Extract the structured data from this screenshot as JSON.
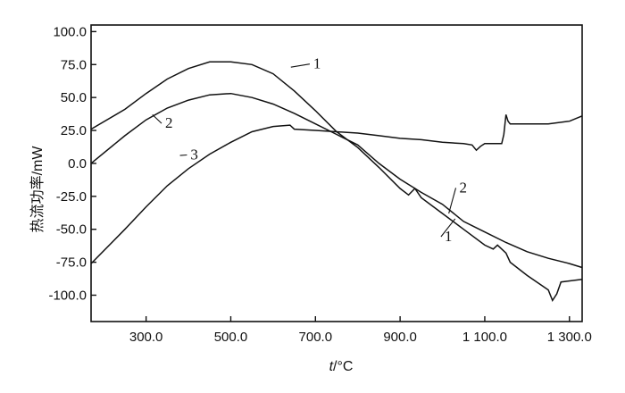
{
  "chart_data": {
    "type": "line",
    "xlabel_var": "t",
    "xlabel_unit": "/°C",
    "ylabel": "热流功率/mW",
    "xlim": [
      170,
      1330
    ],
    "ylim": [
      -120,
      105
    ],
    "xticks": [
      300,
      500,
      700,
      900,
      1100,
      1300
    ],
    "xtick_labels": [
      "300.0",
      "500.0",
      "700.0",
      "900.0",
      "1 100.0",
      "1 300.0"
    ],
    "yticks": [
      100,
      75,
      50,
      25,
      0,
      -25,
      -50,
      -75,
      -100
    ],
    "ytick_labels": [
      "100.0",
      "75.0",
      "50.0",
      "25.0",
      "0.0",
      "-25.0",
      "-50.0",
      "-75.0",
      "-100.0"
    ],
    "series": [
      {
        "name": "1",
        "x": [
          170,
          250,
          300,
          350,
          400,
          450,
          500,
          550,
          600,
          650,
          700,
          750,
          800,
          850,
          900,
          920,
          935,
          950,
          1000,
          1050,
          1100,
          1120,
          1130,
          1150,
          1160,
          1200,
          1250,
          1260,
          1270,
          1280,
          1330
        ],
        "y": [
          26,
          41,
          53,
          64,
          72,
          77,
          77,
          75,
          68,
          55,
          40,
          24,
          12,
          -3,
          -19,
          -24,
          -19,
          -26,
          -38,
          -50,
          -62,
          -65,
          -62,
          -68,
          -75,
          -85,
          -96,
          -104,
          -99,
          -90,
          -88
        ]
      },
      {
        "name": "2",
        "x": [
          170,
          250,
          300,
          350,
          400,
          450,
          500,
          550,
          600,
          650,
          700,
          750,
          800,
          850,
          900,
          950,
          1000,
          1050,
          1100,
          1150,
          1200,
          1250,
          1300,
          1330
        ],
        "y": [
          0,
          21,
          33,
          42,
          48,
          52,
          53,
          50,
          45,
          38,
          30,
          22,
          14,
          0,
          -12,
          -22,
          -31,
          -44,
          -52,
          -60,
          -67,
          -72,
          -76,
          -79
        ]
      },
      {
        "name": "3",
        "x": [
          170,
          250,
          300,
          350,
          400,
          450,
          500,
          550,
          600,
          640,
          650,
          700,
          750,
          800,
          850,
          900,
          950,
          1000,
          1050,
          1070,
          1080,
          1090,
          1100,
          1140,
          1145,
          1150,
          1155,
          1160,
          1200,
          1250,
          1300,
          1330
        ],
        "y": [
          -76,
          -50,
          -33,
          -17,
          -4,
          7,
          16,
          24,
          28,
          29,
          26,
          25,
          24,
          23,
          21,
          19,
          18,
          16,
          15,
          14,
          10,
          13,
          15,
          15,
          22,
          37,
          32,
          30,
          30,
          30,
          32,
          36
        ]
      }
    ],
    "curve_labels": [
      {
        "text": "1",
        "x": 695,
        "y": 72,
        "lx": 642,
        "ly": 73
      },
      {
        "text": "2",
        "x": 345,
        "y": 27,
        "lx": 315,
        "ly": 37
      },
      {
        "text": "3",
        "x": 405,
        "y": 3,
        "lx": 380,
        "ly": 6
      },
      {
        "text": "2",
        "x": 1040,
        "y": -22,
        "lx": 1015,
        "ly": -38
      },
      {
        "text": "1",
        "x": 1005,
        "y": -59,
        "lx": 1030,
        "ly": -42
      }
    ]
  }
}
